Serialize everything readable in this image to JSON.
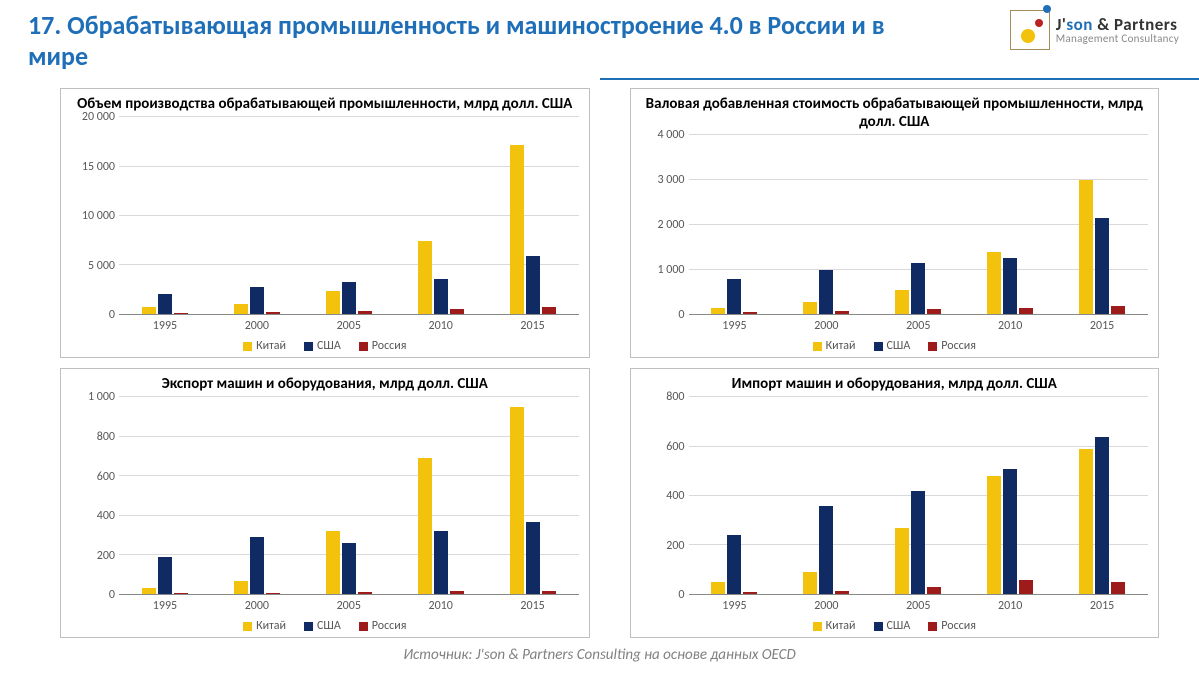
{
  "slide_title": "17. Обрабатывающая промышленность и машиностроение 4.0 в России и в мире",
  "logo": {
    "line1_prefix": "J'",
    "line1_blue": "son",
    "line1_rest": " & Partners",
    "line2": "Management Consultancy"
  },
  "source_text": "Источник: J'son & Partners Consulting на основе данных OECD",
  "colors": {
    "china": "#f2c20c",
    "usa": "#102a63",
    "russia": "#9e1b1b",
    "grid": "#d9d9d9",
    "axis": "#888888",
    "ytext": "#575757"
  },
  "legend": {
    "china": "Китай",
    "usa": "США",
    "russia": "Россия"
  },
  "categories": [
    "1995",
    "2000",
    "2005",
    "2010",
    "2015"
  ],
  "charts": [
    {
      "id": "chart-production",
      "title": "Объем производства обрабатывающей промышленности, млрд долл. США",
      "ymax": 20000,
      "ystep": 5000,
      "yticks": [
        0,
        5000,
        10000,
        15000,
        20000
      ],
      "ytick_labels": [
        "0",
        "5 000",
        "10 000",
        "15 000",
        "20 000"
      ],
      "series": {
        "china": [
          700,
          1100,
          2400,
          7500,
          17200
        ],
        "usa": [
          2100,
          2800,
          3300,
          3600,
          5900
        ],
        "russia": [
          150,
          200,
          350,
          500,
          700
        ]
      }
    },
    {
      "id": "chart-gva",
      "title": "Валовая добавленная стоимость обрабатывающей промышленности, млрд долл. США",
      "ymax": 4000,
      "ystep": 1000,
      "yticks": [
        0,
        1000,
        2000,
        3000,
        4000
      ],
      "ytick_labels": [
        "0",
        "1 000",
        "2 000",
        "3 000",
        "4 000"
      ],
      "series": {
        "china": [
          150,
          280,
          550,
          1400,
          3000
        ],
        "usa": [
          800,
          1000,
          1150,
          1250,
          2150
        ],
        "russia": [
          50,
          70,
          120,
          150,
          180
        ]
      }
    },
    {
      "id": "chart-export",
      "title": "Экспорт машин и оборудования,\nмлрд долл. США",
      "ymax": 1000,
      "ystep": 200,
      "yticks": [
        0,
        200,
        400,
        600,
        800,
        1000
      ],
      "ytick_labels": [
        "0",
        "200",
        "400",
        "600",
        "800",
        "1 000"
      ],
      "series": {
        "china": [
          30,
          70,
          320,
          690,
          950
        ],
        "usa": [
          190,
          290,
          260,
          320,
          370
        ],
        "russia": [
          5,
          7,
          10,
          15,
          18
        ]
      }
    },
    {
      "id": "chart-import",
      "title": "Импорт машин и оборудования,\nмлрд долл. США",
      "ymax": 800,
      "ystep": 200,
      "yticks": [
        0,
        200,
        400,
        600,
        800
      ],
      "ytick_labels": [
        "0",
        "200",
        "400",
        "600",
        "800"
      ],
      "series": {
        "china": [
          50,
          90,
          270,
          480,
          590
        ],
        "usa": [
          240,
          360,
          420,
          510,
          640
        ],
        "russia": [
          10,
          12,
          30,
          60,
          50
        ]
      }
    }
  ]
}
